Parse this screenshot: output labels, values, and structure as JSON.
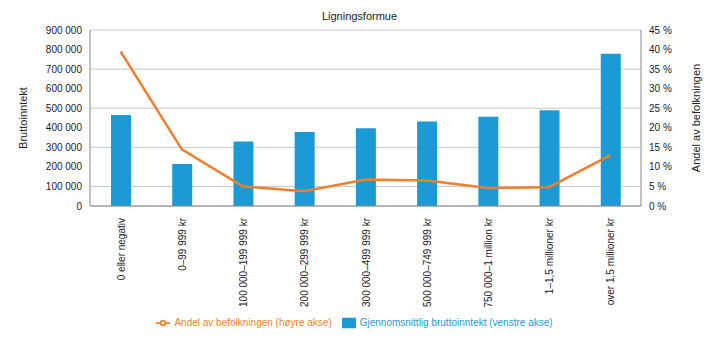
{
  "chart_data": {
    "type": "bar",
    "title": "Ligningsformue",
    "categories": [
      "0 eller negativ",
      "0–99 999 kr",
      "100 000–199 999 kr",
      "200 000–299 999 kr",
      "300 000–499 999 kr",
      "500 000–749 999 kr",
      "750 000–1 million kr",
      "1–1,5 millioner kr",
      "over 1,5 millioner kr"
    ],
    "y_label": "Bruttoinntekt",
    "y2_label": "Andel av befolkningen",
    "ylim": [
      0,
      900000
    ],
    "yticks": [
      {
        "value": 0,
        "label": "0"
      },
      {
        "value": 100000,
        "label": "100 000"
      },
      {
        "value": 200000,
        "label": "200 000"
      },
      {
        "value": 300000,
        "label": "300 000"
      },
      {
        "value": 400000,
        "label": "400 000"
      },
      {
        "value": 500000,
        "label": "500 000"
      },
      {
        "value": 600000,
        "label": "600 000"
      },
      {
        "value": 700000,
        "label": "700 000"
      },
      {
        "value": 800000,
        "label": "800 000"
      },
      {
        "value": 900000,
        "label": "900 000"
      }
    ],
    "y2lim": [
      0,
      45
    ],
    "y2ticks": [
      {
        "value": 0,
        "label": "0 %"
      },
      {
        "value": 5,
        "label": "5 %"
      },
      {
        "value": 10,
        "label": "10 %"
      },
      {
        "value": 15,
        "label": "15 %"
      },
      {
        "value": 20,
        "label": "20 %"
      },
      {
        "value": 25,
        "label": "25 %"
      },
      {
        "value": 30,
        "label": "30 %"
      },
      {
        "value": 35,
        "label": "35 %"
      },
      {
        "value": 40,
        "label": "40 %"
      },
      {
        "value": 45,
        "label": "45 %"
      }
    ],
    "grid": true,
    "legend": "bottom",
    "series": [
      {
        "name": "Gjennomsnittlig bruttoinntekt (venstre akse)",
        "type": "bar",
        "color": "#1b9ad6",
        "values": [
          465000,
          215000,
          330000,
          378000,
          398000,
          432000,
          457000,
          490000,
          778000
        ]
      },
      {
        "name": "Andel av befolkningen (høyre akse)",
        "type": "line",
        "axis": "y2",
        "color": "#f07f2d",
        "values": [
          39.5,
          14.5,
          5,
          3.8,
          6.8,
          6.5,
          4.6,
          4.8,
          13
        ]
      }
    ]
  }
}
